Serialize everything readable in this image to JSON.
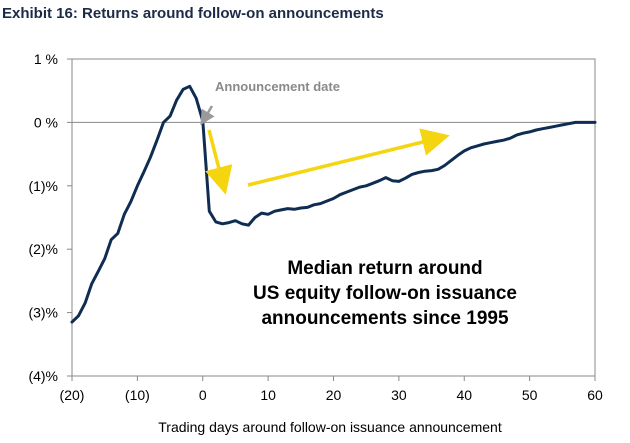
{
  "chart_data": {
    "type": "line",
    "title": "Exhibit 16: Returns around follow-on announcements",
    "xlabel": "Trading days around follow-on issuance announcement",
    "ylabel": "",
    "xlim": [
      -20,
      60
    ],
    "ylim": [
      -4,
      1
    ],
    "x_ticks": [
      -20,
      -10,
      0,
      10,
      20,
      30,
      40,
      50,
      60
    ],
    "x_tick_labels": [
      "(20)",
      "(10)",
      "0",
      "10",
      "20",
      "30",
      "40",
      "50",
      "60"
    ],
    "y_ticks": [
      1,
      0,
      -1,
      -2,
      -3,
      -4
    ],
    "y_tick_labels": [
      "1 %",
      "0 %",
      "(1)%",
      "(2)%",
      "(3)%",
      "(4)%"
    ],
    "grid": false,
    "series": [
      {
        "color": "#0f2d52",
        "x": [
          -20,
          -19,
          -18,
          -17,
          -16,
          -15,
          -14,
          -13,
          -12,
          -11,
          -10,
          -9,
          -8,
          -7,
          -6,
          -5,
          -4,
          -3,
          -2,
          -1,
          0,
          1,
          2,
          3,
          4,
          5,
          6,
          7,
          8,
          9,
          10,
          11,
          12,
          13,
          14,
          15,
          16,
          17,
          18,
          19,
          20,
          21,
          22,
          23,
          24,
          25,
          26,
          27,
          28,
          29,
          30,
          31,
          32,
          33,
          34,
          35,
          36,
          37,
          38,
          39,
          40,
          41,
          42,
          43,
          44,
          45,
          46,
          47,
          48,
          49,
          50,
          51,
          52,
          53,
          54,
          55,
          56,
          57,
          58,
          59,
          60
        ],
        "values": [
          -3.15,
          -3.05,
          -2.85,
          -2.55,
          -2.35,
          -2.15,
          -1.85,
          -1.75,
          -1.45,
          -1.25,
          -1.0,
          -0.78,
          -0.55,
          -0.28,
          0.0,
          0.1,
          0.35,
          0.52,
          0.57,
          0.38,
          0.02,
          -1.4,
          -1.57,
          -1.6,
          -1.58,
          -1.55,
          -1.6,
          -1.62,
          -1.5,
          -1.43,
          -1.45,
          -1.4,
          -1.38,
          -1.36,
          -1.37,
          -1.35,
          -1.34,
          -1.3,
          -1.28,
          -1.24,
          -1.2,
          -1.14,
          -1.1,
          -1.06,
          -1.02,
          -1.0,
          -0.96,
          -0.92,
          -0.87,
          -0.92,
          -0.93,
          -0.88,
          -0.82,
          -0.79,
          -0.77,
          -0.76,
          -0.74,
          -0.68,
          -0.6,
          -0.52,
          -0.45,
          -0.4,
          -0.37,
          -0.34,
          -0.32,
          -0.3,
          -0.28,
          -0.25,
          -0.2,
          -0.17,
          -0.15,
          -0.12,
          -0.1,
          -0.08,
          -0.06,
          -0.04,
          -0.02,
          0.0,
          0.0,
          0.0,
          0.0
        ]
      }
    ],
    "annotations": {
      "announcement_label": "Announcement date",
      "note_lines": [
        "Median return around",
        "US equity follow-on issuance",
        "announcements since 1995"
      ]
    },
    "colors": {
      "line": "#0f2d52",
      "arrow": "#f5d50f",
      "announcement_arrow": "#9a9a9a",
      "axis": "#888888",
      "title": "#1c2b46"
    }
  }
}
